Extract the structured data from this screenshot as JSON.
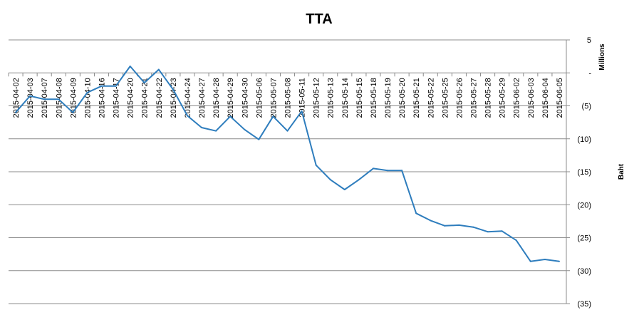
{
  "chart_data": {
    "type": "line",
    "title": "TTA",
    "xlabel": "",
    "ylabel": "Baht",
    "y_unit_label": "Millions",
    "ylim": [
      -35,
      5
    ],
    "y_ticks": [
      5,
      0,
      -5,
      -10,
      -15,
      -20,
      -25,
      -30,
      -35
    ],
    "y_tick_labels": [
      "5",
      "-",
      "(5)",
      "(10)",
      "(15)",
      "(20)",
      "(25)",
      "(30)",
      "(35)"
    ],
    "grid": true,
    "legend": "none",
    "categories": [
      "2015-04-02",
      "2015-04-03",
      "2015-04-07",
      "2015-04-08",
      "2015-04-09",
      "2015-04-10",
      "2015-04-16",
      "2015-04-17",
      "2015-04-20",
      "2015-04-21",
      "2015-04-22",
      "2015-04-23",
      "2015-04-24",
      "2015-04-27",
      "2015-04-28",
      "2015-04-29",
      "2015-04-30",
      "2015-05-06",
      "2015-05-07",
      "2015-05-08",
      "2015-05-11",
      "2015-05-12",
      "2015-05-13",
      "2015-05-14",
      "2015-05-15",
      "2015-05-18",
      "2015-05-19",
      "2015-05-20",
      "2015-05-21",
      "2015-05-22",
      "2015-05-25",
      "2015-05-26",
      "2015-05-27",
      "2015-05-28",
      "2015-05-29",
      "2015-06-02",
      "2015-06-03",
      "2015-06-04",
      "2015-06-05"
    ],
    "series": [
      {
        "name": "",
        "color": "#2e7dbd",
        "values": [
          -6.0,
          -3.5,
          -4.0,
          -4.0,
          -6.0,
          -3.0,
          -2.0,
          -2.0,
          1.0,
          -1.5,
          0.5,
          -2.5,
          -6.5,
          -8.3,
          -8.8,
          -6.6,
          -8.6,
          -10.1,
          -6.6,
          -8.8,
          -5.8,
          -14.0,
          -16.2,
          -17.7,
          -16.2,
          -14.5,
          -14.8,
          -14.8,
          -21.3,
          -22.4,
          -23.2,
          -23.1,
          -23.4,
          -24.1,
          -24.0,
          -25.4,
          -28.6,
          -28.3,
          -28.6
        ]
      }
    ]
  }
}
